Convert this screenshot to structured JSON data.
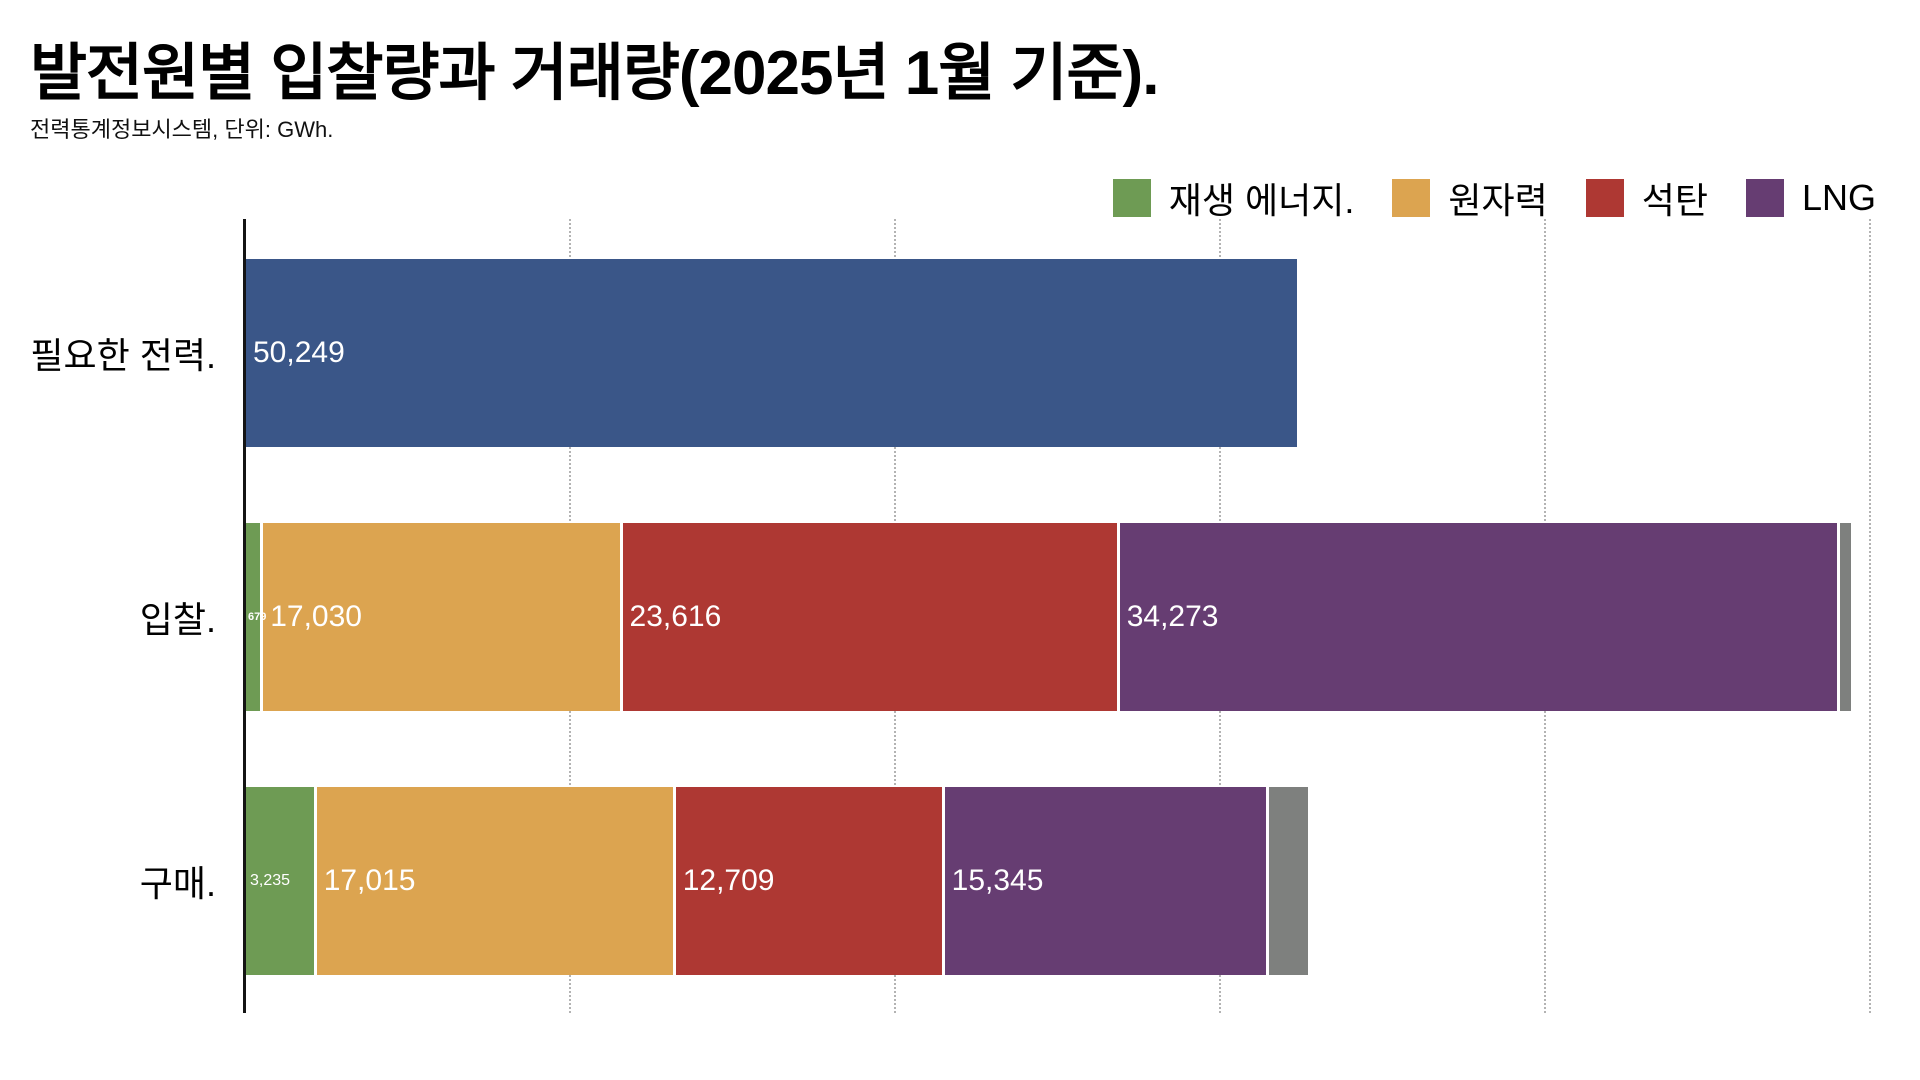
{
  "chart_data": {
    "type": "bar",
    "orientation": "horizontal",
    "stacked": true,
    "title": "발전원별 입찰량과 거래량(2025년 1월 기준).",
    "source_note": "전력통계정보시스템, 단위: GWh.",
    "unit": "GWh",
    "axis_range": [
      0,
      80000
    ],
    "grid": true,
    "gridlines_pct": [
      19.3,
      38.71,
      58.12,
      77.54,
      96.95
    ],
    "legend_position": "top-right",
    "legend": [
      {
        "label": "재생 에너지.",
        "color": "#6E9B54"
      },
      {
        "label": "원자력",
        "color": "#DCA450"
      },
      {
        "label": "석탄",
        "color": "#AE3833"
      },
      {
        "label": "LNG",
        "color": "#663D72"
      }
    ],
    "categories": [
      "필요한 전력.",
      "입찰.",
      "구매."
    ],
    "rows": [
      {
        "category": "필요한 전력.",
        "segments": [
          {
            "series": "필요한 전력",
            "value": 50249,
            "label": "50,249",
            "label_size": "large",
            "color": "#3A5688"
          }
        ]
      },
      {
        "category": "입찰.",
        "segments": [
          {
            "series": "재생 에너지",
            "value": 679,
            "label": "679",
            "label_size": "tiny",
            "color": "#6E9B54"
          },
          {
            "series": "원자력",
            "value": 17030,
            "label": "17,030",
            "label_size": "large",
            "color": "#DCA450"
          },
          {
            "series": "석탄",
            "value": 23616,
            "label": "23,616",
            "label_size": "large",
            "color": "#AE3833"
          },
          {
            "series": "LNG",
            "value": 34273,
            "label": "34,273",
            "label_size": "large",
            "color": "#663D72"
          },
          {
            "series": "unlabeled",
            "value": null,
            "width_pct": 0.66,
            "label": "",
            "color": "#7E807E"
          }
        ]
      },
      {
        "category": "구매.",
        "segments": [
          {
            "series": "재생 에너지",
            "value": 3235,
            "label": "3,235",
            "label_size": "small",
            "color": "#6E9B54"
          },
          {
            "series": "원자력",
            "value": 17015,
            "label": "17,015",
            "label_size": "large",
            "color": "#DCA450"
          },
          {
            "series": "석탄",
            "value": 12709,
            "label": "12,709",
            "label_size": "large",
            "color": "#AE3833"
          },
          {
            "series": "LNG",
            "value": 15345,
            "label": "15,345",
            "label_size": "large",
            "color": "#663D72"
          },
          {
            "series": "unlabeled",
            "value": null,
            "width_pct": 2.33,
            "label": "",
            "color": "#7E807E"
          }
        ]
      }
    ]
  }
}
